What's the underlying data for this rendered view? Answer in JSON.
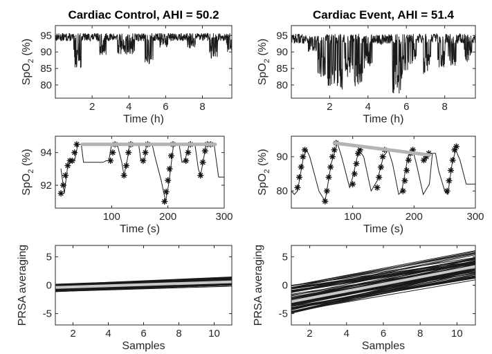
{
  "chart_data": [
    {
      "id": "tl",
      "type": "line",
      "title": "Cardiac Control, AHI = 50.2",
      "xlabel": "Time (h)",
      "ylabel": {
        "main": "SpO",
        "sub": "2",
        "rest": " (%)"
      },
      "xlim": [
        0,
        9.6
      ],
      "ylim": [
        76,
        98
      ],
      "xticks": [
        2,
        4,
        6,
        8
      ],
      "yticks": [
        80,
        85,
        90,
        95
      ],
      "series": [
        {
          "color": "#1a1a1a",
          "baseline": 94.5,
          "noise": 1.2,
          "dips": [
            [
              1.2,
              85
            ],
            [
              2.6,
              89
            ],
            [
              3.6,
              89
            ],
            [
              4.1,
              89
            ],
            [
              5.1,
              86
            ],
            [
              5.9,
              91
            ],
            [
              7.4,
              91
            ],
            [
              8.6,
              88
            ],
            [
              9.5,
              90
            ]
          ]
        }
      ]
    },
    {
      "id": "tr",
      "type": "line",
      "title": "Cardiac Event, AHI = 51.4",
      "xlabel": "Time (h)",
      "ylabel": {
        "main": "SpO",
        "sub": "2",
        "rest": " (%)"
      },
      "xlim": [
        0,
        9.6
      ],
      "ylim": [
        76,
        98
      ],
      "xticks": [
        2,
        4,
        6,
        8
      ],
      "yticks": [
        80,
        85,
        90,
        95
      ],
      "series": [
        {
          "color": "#1a1a1a",
          "baseline": 94,
          "noise": 1.5,
          "dips": [
            [
              1.1,
              90
            ],
            [
              1.6,
              82
            ],
            [
              2.1,
              77
            ],
            [
              2.5,
              78
            ],
            [
              3.0,
              82
            ],
            [
              3.5,
              79
            ],
            [
              4.0,
              85
            ],
            [
              4.7,
              92
            ],
            [
              5.5,
              77
            ],
            [
              5.9,
              81
            ],
            [
              6.3,
              86
            ],
            [
              7.1,
              83
            ],
            [
              7.8,
              85
            ],
            [
              8.4,
              85
            ],
            [
              9.2,
              87
            ]
          ]
        }
      ]
    },
    {
      "id": "ml",
      "type": "line",
      "title": "",
      "xlabel": "Time (s)",
      "ylabel": {
        "main": "SpO",
        "sub": "2",
        "rest": " (%)"
      },
      "xlim": [
        0,
        300
      ],
      "ylim": [
        90.6,
        95
      ],
      "xticks": [
        100,
        200,
        300
      ],
      "yticks": [
        92,
        94
      ],
      "series": [
        {
          "name": "",
          "color": "#1a1a1a",
          "points": [
            [
              10,
              93.0
            ],
            [
              16,
              91.5
            ],
            [
              22,
              93.2
            ],
            [
              28,
              93.5
            ],
            [
              34,
              93.5
            ],
            [
              40,
              94.5
            ],
            [
              46,
              94.5
            ],
            [
              50,
              93.4
            ],
            [
              85,
              93.4
            ],
            [
              90,
              93.5
            ],
            [
              95,
              93.5
            ],
            [
              100,
              94.5
            ],
            [
              110,
              94.5
            ],
            [
              118,
              93.4
            ],
            [
              122,
              92.6
            ],
            [
              128,
              93.6
            ],
            [
              132,
              94.5
            ],
            [
              148,
              94.5
            ],
            [
              152,
              93.5
            ],
            [
              158,
              93.5
            ],
            [
              162,
              94.5
            ],
            [
              172,
              94.5
            ],
            [
              178,
              93.6
            ],
            [
              188,
              92.3
            ],
            [
              196,
              91.0
            ],
            [
              202,
              92.2
            ],
            [
              210,
              94.5
            ],
            [
              220,
              94.5
            ],
            [
              225,
              93.4
            ],
            [
              230,
              93.5
            ],
            [
              238,
              94.5
            ],
            [
              248,
              94.5
            ],
            [
              254,
              93.0
            ],
            [
              258,
              92.6
            ],
            [
              268,
              94.5
            ],
            [
              282,
              94.5
            ],
            [
              290,
              92.5
            ],
            [
              300,
              92.5
            ]
          ]
        },
        {
          "name": "",
          "markers": true,
          "color": "#111111",
          "points": [
            [
              10,
              91.5
            ],
            [
              14,
              92.0
            ],
            [
              18,
              92.6
            ],
            [
              22,
              93.2
            ],
            [
              26,
              93.5
            ],
            [
              30,
              93.5
            ],
            [
              34,
              94.0
            ],
            [
              38,
              94.5
            ],
            [
              98,
              93.5
            ],
            [
              102,
              94.0
            ],
            [
              106,
              94.5
            ],
            [
              122,
              92.6
            ],
            [
              126,
              93.2
            ],
            [
              130,
              94.0
            ],
            [
              134,
              94.5
            ],
            [
              156,
              93.5
            ],
            [
              160,
              94.0
            ],
            [
              164,
              94.5
            ],
            [
              194,
              91.0
            ],
            [
              197,
              91.6
            ],
            [
              200,
              92.3
            ],
            [
              203,
              93.0
            ],
            [
              206,
              93.8
            ],
            [
              209,
              94.5
            ],
            [
              232,
              93.5
            ],
            [
              236,
              94.0
            ],
            [
              240,
              94.5
            ],
            [
              258,
              92.6
            ],
            [
              262,
              93.4
            ],
            [
              266,
              94.1
            ],
            [
              270,
              94.5
            ],
            [
              276,
              94.5
            ]
          ]
        },
        {
          "name": "",
          "color": "#b3b3b3",
          "width": 5,
          "points": [
            [
              48,
              94.5
            ],
            [
              284,
              94.5
            ]
          ]
        }
      ]
    },
    {
      "id": "mr",
      "type": "line",
      "title": "",
      "xlabel": "Time (s)",
      "ylabel": {
        "main": "SpO",
        "sub": "2",
        "rest": " (%)"
      },
      "xlim": [
        0,
        300
      ],
      "ylim": [
        75,
        96
      ],
      "xticks": [
        100,
        200,
        300
      ],
      "yticks": [
        80,
        90
      ],
      "series": [
        {
          "name": "",
          "color": "#1a1a1a",
          "points": [
            [
              0,
              80
            ],
            [
              5,
              79
            ],
            [
              10,
              80
            ],
            [
              20,
              90
            ],
            [
              25,
              92
            ],
            [
              30,
              90
            ],
            [
              45,
              80
            ],
            [
              55,
              77
            ],
            [
              65,
              88
            ],
            [
              75,
              94
            ],
            [
              82,
              90
            ],
            [
              95,
              81
            ],
            [
              100,
              84
            ],
            [
              110,
              92
            ],
            [
              118,
              90
            ],
            [
              130,
              80
            ],
            [
              140,
              83
            ],
            [
              150,
              90
            ],
            [
              158,
              92
            ],
            [
              165,
              88
            ],
            [
              175,
              79
            ],
            [
              180,
              80
            ],
            [
              190,
              90
            ],
            [
              198,
              92
            ],
            [
              205,
              87
            ],
            [
              215,
              79
            ],
            [
              225,
              82
            ],
            [
              230,
              91
            ],
            [
              235,
              91
            ],
            [
              240,
              86
            ],
            [
              250,
              80
            ],
            [
              255,
              79
            ],
            [
              262,
              88
            ],
            [
              268,
              92
            ],
            [
              275,
              89
            ],
            [
              285,
              82
            ],
            [
              300,
              82
            ]
          ]
        },
        {
          "name": "",
          "markers": true,
          "color": "#111111",
          "points": [
            [
              10,
              81
            ],
            [
              13,
              84
            ],
            [
              16,
              87
            ],
            [
              19,
              90
            ],
            [
              22,
              92
            ],
            [
              55,
              77
            ],
            [
              58,
              80
            ],
            [
              61,
              84
            ],
            [
              64,
              87
            ],
            [
              67,
              90
            ],
            [
              70,
              92
            ],
            [
              73,
              94
            ],
            [
              100,
              82
            ],
            [
              103,
              85
            ],
            [
              106,
              88
            ],
            [
              109,
              91
            ],
            [
              112,
              92
            ],
            [
              140,
              81
            ],
            [
              143,
              84
            ],
            [
              146,
              87
            ],
            [
              149,
              90
            ],
            [
              152,
              92
            ],
            [
              182,
              80
            ],
            [
              185,
              83
            ],
            [
              188,
              86
            ],
            [
              191,
              89
            ],
            [
              194,
              91
            ],
            [
              198,
              92
            ],
            [
              216,
              89
            ],
            [
              220,
              90
            ],
            [
              224,
              91
            ],
            [
              254,
              80
            ],
            [
              257,
              83
            ],
            [
              260,
              86
            ],
            [
              263,
              89
            ],
            [
              266,
              92
            ],
            [
              269,
              93
            ]
          ]
        },
        {
          "name": "",
          "color": "#b3b3b3",
          "width": 5,
          "points": [
            [
              70,
              94
            ],
            [
              225,
              90.5
            ]
          ]
        }
      ]
    },
    {
      "id": "bl",
      "type": "line",
      "title": "",
      "xlabel": "Samples",
      "ylabel": {
        "main": "PRSA averaging",
        "sub": "",
        "rest": ""
      },
      "xlim": [
        1,
        11
      ],
      "ylim": [
        -7,
        7
      ],
      "xticks": [
        2,
        4,
        6,
        8,
        10
      ],
      "yticks": [
        -5,
        0,
        5
      ],
      "bundle": {
        "count": 60,
        "x0": 1,
        "x1": 11,
        "y0mean": -0.5,
        "y0spread": 1.4,
        "y1mean": 0.7,
        "y1spread": 1.9,
        "color": "#1a1a1a"
      },
      "series": [
        {
          "name": "",
          "color": "#c8c8c8",
          "width": 4,
          "points": [
            [
              1,
              -0.4
            ],
            [
              11,
              0.6
            ]
          ]
        }
      ]
    },
    {
      "id": "br",
      "type": "line",
      "title": "",
      "xlabel": "Samples",
      "ylabel": {
        "main": "PRSA averaging",
        "sub": "",
        "rest": ""
      },
      "xlim": [
        1,
        11
      ],
      "ylim": [
        -7,
        7
      ],
      "xticks": [
        2,
        4,
        6,
        8,
        10
      ],
      "yticks": [
        -5,
        0,
        5
      ],
      "bundle": {
        "count": 80,
        "x0": 1,
        "x1": 11,
        "y0mean": -2.5,
        "y0spread": 5.0,
        "y1mean": 3.5,
        "y1spread": 6.0,
        "color": "#1a1a1a"
      },
      "series": [
        {
          "name": "",
          "color": "#c8c8c8",
          "width": 4,
          "points": [
            [
              1,
              -2.9
            ],
            [
              11,
              3.3
            ]
          ]
        }
      ]
    }
  ]
}
